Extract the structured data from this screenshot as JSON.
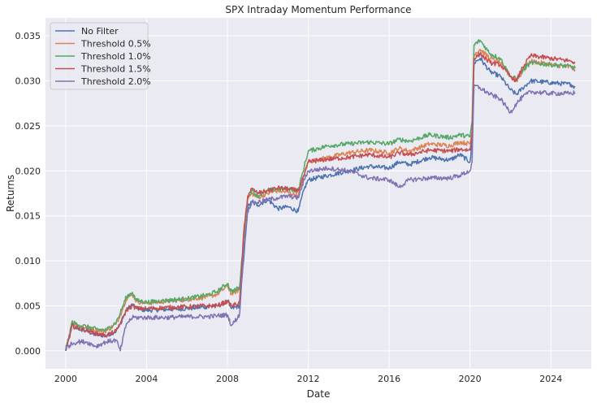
{
  "chart_data": {
    "type": "line",
    "title": "SPX Intraday Momentum Performance",
    "xlabel": "Date",
    "ylabel": "Returns",
    "xlim": [
      1999.0,
      2026.0
    ],
    "ylim": [
      -0.002,
      0.037
    ],
    "x_ticks": [
      {
        "value": 2000,
        "label": "2000"
      },
      {
        "value": 2004,
        "label": "2004"
      },
      {
        "value": 2008,
        "label": "2008"
      },
      {
        "value": 2012,
        "label": "2012"
      },
      {
        "value": 2016,
        "label": "2016"
      },
      {
        "value": 2020,
        "label": "2020"
      },
      {
        "value": 2024,
        "label": "2024"
      }
    ],
    "y_ticks": [
      {
        "value": 0.0,
        "label": "0.000"
      },
      {
        "value": 0.005,
        "label": "0.005"
      },
      {
        "value": 0.01,
        "label": "0.010"
      },
      {
        "value": 0.015,
        "label": "0.015"
      },
      {
        "value": 0.02,
        "label": "0.020"
      },
      {
        "value": 0.025,
        "label": "0.025"
      },
      {
        "value": 0.03,
        "label": "0.030"
      },
      {
        "value": 0.035,
        "label": "0.035"
      }
    ],
    "grid": true,
    "legend": "top-left",
    "series": [
      {
        "name": "No Filter",
        "color": "#4c72b0",
        "points": [
          [
            2000.0,
            0.0
          ],
          [
            2000.05,
            0.0005
          ],
          [
            2000.2,
            0.0015
          ],
          [
            2000.3,
            0.0028
          ],
          [
            2000.6,
            0.0025
          ],
          [
            2001.0,
            0.0022
          ],
          [
            2001.5,
            0.0018
          ],
          [
            2002.0,
            0.0017
          ],
          [
            2002.5,
            0.0022
          ],
          [
            2002.7,
            0.003
          ],
          [
            2003.0,
            0.0045
          ],
          [
            2003.3,
            0.0052
          ],
          [
            2003.5,
            0.0047
          ],
          [
            2004.0,
            0.0045
          ],
          [
            2005.0,
            0.0046
          ],
          [
            2006.0,
            0.0047
          ],
          [
            2007.0,
            0.0049
          ],
          [
            2007.5,
            0.005
          ],
          [
            2008.0,
            0.0055
          ],
          [
            2008.2,
            0.0047
          ],
          [
            2008.6,
            0.005
          ],
          [
            2008.8,
            0.01
          ],
          [
            2009.0,
            0.016
          ],
          [
            2009.2,
            0.0165
          ],
          [
            2009.5,
            0.0162
          ],
          [
            2010.0,
            0.0168
          ],
          [
            2010.5,
            0.0158
          ],
          [
            2011.0,
            0.016
          ],
          [
            2011.5,
            0.0155
          ],
          [
            2011.8,
            0.018
          ],
          [
            2012.0,
            0.019
          ],
          [
            2013.0,
            0.0195
          ],
          [
            2014.0,
            0.02
          ],
          [
            2015.0,
            0.0205
          ],
          [
            2016.0,
            0.0203
          ],
          [
            2016.5,
            0.021
          ],
          [
            2017.0,
            0.0207
          ],
          [
            2018.0,
            0.0215
          ],
          [
            2019.0,
            0.0212
          ],
          [
            2019.5,
            0.0218
          ],
          [
            2020.0,
            0.021
          ],
          [
            2020.1,
            0.023
          ],
          [
            2020.2,
            0.032
          ],
          [
            2020.5,
            0.0325
          ],
          [
            2021.0,
            0.031
          ],
          [
            2021.5,
            0.0305
          ],
          [
            2022.0,
            0.029
          ],
          [
            2022.3,
            0.0285
          ],
          [
            2022.6,
            0.0292
          ],
          [
            2023.0,
            0.03
          ],
          [
            2024.0,
            0.0298
          ],
          [
            2025.0,
            0.0296
          ],
          [
            2025.2,
            0.0293
          ]
        ]
      },
      {
        "name": "Threshold 0.5%",
        "color": "#dd8452",
        "points": [
          [
            2000.0,
            0.0
          ],
          [
            2000.05,
            0.0006
          ],
          [
            2000.2,
            0.0018
          ],
          [
            2000.3,
            0.003
          ],
          [
            2000.6,
            0.0028
          ],
          [
            2001.0,
            0.0026
          ],
          [
            2001.5,
            0.0023
          ],
          [
            2002.0,
            0.0022
          ],
          [
            2002.5,
            0.003
          ],
          [
            2002.7,
            0.004
          ],
          [
            2003.0,
            0.0058
          ],
          [
            2003.3,
            0.0063
          ],
          [
            2003.5,
            0.0055
          ],
          [
            2004.0,
            0.0053
          ],
          [
            2005.0,
            0.0055
          ],
          [
            2006.0,
            0.0057
          ],
          [
            2007.0,
            0.006
          ],
          [
            2007.5,
            0.0063
          ],
          [
            2008.0,
            0.0072
          ],
          [
            2008.2,
            0.0063
          ],
          [
            2008.6,
            0.0068
          ],
          [
            2008.8,
            0.012
          ],
          [
            2009.0,
            0.0168
          ],
          [
            2009.2,
            0.0175
          ],
          [
            2009.5,
            0.017
          ],
          [
            2010.0,
            0.0175
          ],
          [
            2010.5,
            0.0178
          ],
          [
            2011.0,
            0.0176
          ],
          [
            2011.5,
            0.0172
          ],
          [
            2011.8,
            0.0195
          ],
          [
            2012.0,
            0.021
          ],
          [
            2013.0,
            0.0215
          ],
          [
            2014.0,
            0.022
          ],
          [
            2015.0,
            0.0223
          ],
          [
            2016.0,
            0.022
          ],
          [
            2016.5,
            0.0225
          ],
          [
            2017.0,
            0.0222
          ],
          [
            2018.0,
            0.023
          ],
          [
            2019.0,
            0.0228
          ],
          [
            2019.5,
            0.0232
          ],
          [
            2020.0,
            0.023
          ],
          [
            2020.1,
            0.0245
          ],
          [
            2020.2,
            0.033
          ],
          [
            2020.5,
            0.0335
          ],
          [
            2021.0,
            0.0325
          ],
          [
            2021.5,
            0.032
          ],
          [
            2022.0,
            0.0305
          ],
          [
            2022.3,
            0.03
          ],
          [
            2022.6,
            0.031
          ],
          [
            2023.0,
            0.0322
          ],
          [
            2024.0,
            0.0318
          ],
          [
            2025.0,
            0.0315
          ],
          [
            2025.2,
            0.0312
          ]
        ]
      },
      {
        "name": "Threshold 1.0%",
        "color": "#55a868",
        "points": [
          [
            2000.0,
            0.0
          ],
          [
            2000.05,
            0.0007
          ],
          [
            2000.2,
            0.0019
          ],
          [
            2000.3,
            0.0032
          ],
          [
            2000.6,
            0.0029
          ],
          [
            2001.0,
            0.0027
          ],
          [
            2001.5,
            0.0024
          ],
          [
            2002.0,
            0.0023
          ],
          [
            2002.5,
            0.0032
          ],
          [
            2002.7,
            0.0042
          ],
          [
            2003.0,
            0.006
          ],
          [
            2003.3,
            0.0065
          ],
          [
            2003.5,
            0.0056
          ],
          [
            2004.0,
            0.0054
          ],
          [
            2005.0,
            0.0056
          ],
          [
            2006.0,
            0.0058
          ],
          [
            2007.0,
            0.0062
          ],
          [
            2007.5,
            0.0066
          ],
          [
            2008.0,
            0.0075
          ],
          [
            2008.2,
            0.0066
          ],
          [
            2008.6,
            0.007
          ],
          [
            2008.8,
            0.0125
          ],
          [
            2009.0,
            0.017
          ],
          [
            2009.2,
            0.0178
          ],
          [
            2009.5,
            0.0172
          ],
          [
            2010.0,
            0.0178
          ],
          [
            2010.5,
            0.018
          ],
          [
            2011.0,
            0.018
          ],
          [
            2011.5,
            0.0178
          ],
          [
            2011.8,
            0.0205
          ],
          [
            2012.0,
            0.0222
          ],
          [
            2013.0,
            0.0228
          ],
          [
            2014.0,
            0.023
          ],
          [
            2015.0,
            0.0232
          ],
          [
            2016.0,
            0.023
          ],
          [
            2016.5,
            0.0235
          ],
          [
            2017.0,
            0.0233
          ],
          [
            2018.0,
            0.024
          ],
          [
            2019.0,
            0.0237
          ],
          [
            2019.5,
            0.024
          ],
          [
            2020.0,
            0.0238
          ],
          [
            2020.1,
            0.0255
          ],
          [
            2020.2,
            0.034
          ],
          [
            2020.5,
            0.0345
          ],
          [
            2021.0,
            0.033
          ],
          [
            2021.5,
            0.0325
          ],
          [
            2022.0,
            0.0305
          ],
          [
            2022.3,
            0.0302
          ],
          [
            2022.6,
            0.0312
          ],
          [
            2023.0,
            0.032
          ],
          [
            2024.0,
            0.0318
          ],
          [
            2025.0,
            0.0316
          ],
          [
            2025.2,
            0.0314
          ]
        ]
      },
      {
        "name": "Threshold 1.5%",
        "color": "#c44e52",
        "points": [
          [
            2000.0,
            0.0
          ],
          [
            2000.05,
            0.0005
          ],
          [
            2000.2,
            0.0016
          ],
          [
            2000.3,
            0.0028
          ],
          [
            2000.6,
            0.0025
          ],
          [
            2001.0,
            0.0023
          ],
          [
            2001.5,
            0.0019
          ],
          [
            2002.0,
            0.0017
          ],
          [
            2002.5,
            0.0022
          ],
          [
            2002.7,
            0.003
          ],
          [
            2003.0,
            0.0045
          ],
          [
            2003.3,
            0.005
          ],
          [
            2003.5,
            0.0047
          ],
          [
            2004.0,
            0.0047
          ],
          [
            2005.0,
            0.0048
          ],
          [
            2006.0,
            0.0049
          ],
          [
            2007.0,
            0.005
          ],
          [
            2007.5,
            0.005
          ],
          [
            2008.0,
            0.0055
          ],
          [
            2008.2,
            0.005
          ],
          [
            2008.6,
            0.0053
          ],
          [
            2008.8,
            0.013
          ],
          [
            2009.0,
            0.0172
          ],
          [
            2009.2,
            0.018
          ],
          [
            2009.5,
            0.0175
          ],
          [
            2010.0,
            0.0178
          ],
          [
            2010.5,
            0.0181
          ],
          [
            2011.0,
            0.018
          ],
          [
            2011.5,
            0.0178
          ],
          [
            2011.8,
            0.0195
          ],
          [
            2012.0,
            0.021
          ],
          [
            2013.0,
            0.0213
          ],
          [
            2014.0,
            0.0215
          ],
          [
            2015.0,
            0.0218
          ],
          [
            2016.0,
            0.0215
          ],
          [
            2016.5,
            0.022
          ],
          [
            2017.0,
            0.0218
          ],
          [
            2018.0,
            0.0223
          ],
          [
            2019.0,
            0.0222
          ],
          [
            2019.5,
            0.0224
          ],
          [
            2020.0,
            0.0223
          ],
          [
            2020.1,
            0.024
          ],
          [
            2020.2,
            0.0325
          ],
          [
            2020.5,
            0.033
          ],
          [
            2021.0,
            0.032
          ],
          [
            2021.5,
            0.0318
          ],
          [
            2022.0,
            0.0305
          ],
          [
            2022.3,
            0.03
          ],
          [
            2022.6,
            0.0315
          ],
          [
            2023.0,
            0.0328
          ],
          [
            2024.0,
            0.0325
          ],
          [
            2025.0,
            0.0322
          ],
          [
            2025.2,
            0.032
          ]
        ]
      },
      {
        "name": "Threshold 2.0%",
        "color": "#8172b3",
        "points": [
          [
            2000.0,
            0.0
          ],
          [
            2000.05,
            0.0004
          ],
          [
            2000.2,
            0.0006
          ],
          [
            2000.3,
            0.0008
          ],
          [
            2000.6,
            0.001
          ],
          [
            2001.0,
            0.001
          ],
          [
            2001.5,
            0.0005
          ],
          [
            2002.0,
            0.001
          ],
          [
            2002.5,
            0.0012
          ],
          [
            2002.7,
            0.0
          ],
          [
            2003.0,
            0.003
          ],
          [
            2003.3,
            0.0037
          ],
          [
            2003.5,
            0.0037
          ],
          [
            2004.0,
            0.0037
          ],
          [
            2005.0,
            0.0037
          ],
          [
            2006.0,
            0.0038
          ],
          [
            2007.0,
            0.0038
          ],
          [
            2007.5,
            0.0039
          ],
          [
            2008.0,
            0.004
          ],
          [
            2008.2,
            0.0028
          ],
          [
            2008.6,
            0.004
          ],
          [
            2008.8,
            0.011
          ],
          [
            2009.0,
            0.0155
          ],
          [
            2009.2,
            0.0165
          ],
          [
            2009.5,
            0.0165
          ],
          [
            2010.0,
            0.0168
          ],
          [
            2010.5,
            0.017
          ],
          [
            2011.0,
            0.0172
          ],
          [
            2011.5,
            0.017
          ],
          [
            2011.8,
            0.019
          ],
          [
            2012.0,
            0.02
          ],
          [
            2013.0,
            0.0203
          ],
          [
            2014.0,
            0.02
          ],
          [
            2015.0,
            0.0192
          ],
          [
            2016.0,
            0.019
          ],
          [
            2016.5,
            0.0182
          ],
          [
            2017.0,
            0.019
          ],
          [
            2018.0,
            0.0192
          ],
          [
            2019.0,
            0.0192
          ],
          [
            2019.5,
            0.0195
          ],
          [
            2020.0,
            0.02
          ],
          [
            2020.1,
            0.021
          ],
          [
            2020.2,
            0.0295
          ],
          [
            2020.5,
            0.0292
          ],
          [
            2021.0,
            0.0285
          ],
          [
            2021.5,
            0.028
          ],
          [
            2022.0,
            0.0265
          ],
          [
            2022.3,
            0.0275
          ],
          [
            2022.6,
            0.0282
          ],
          [
            2023.0,
            0.0288
          ],
          [
            2024.0,
            0.0286
          ],
          [
            2025.0,
            0.0286
          ],
          [
            2025.2,
            0.0287
          ]
        ]
      }
    ]
  }
}
